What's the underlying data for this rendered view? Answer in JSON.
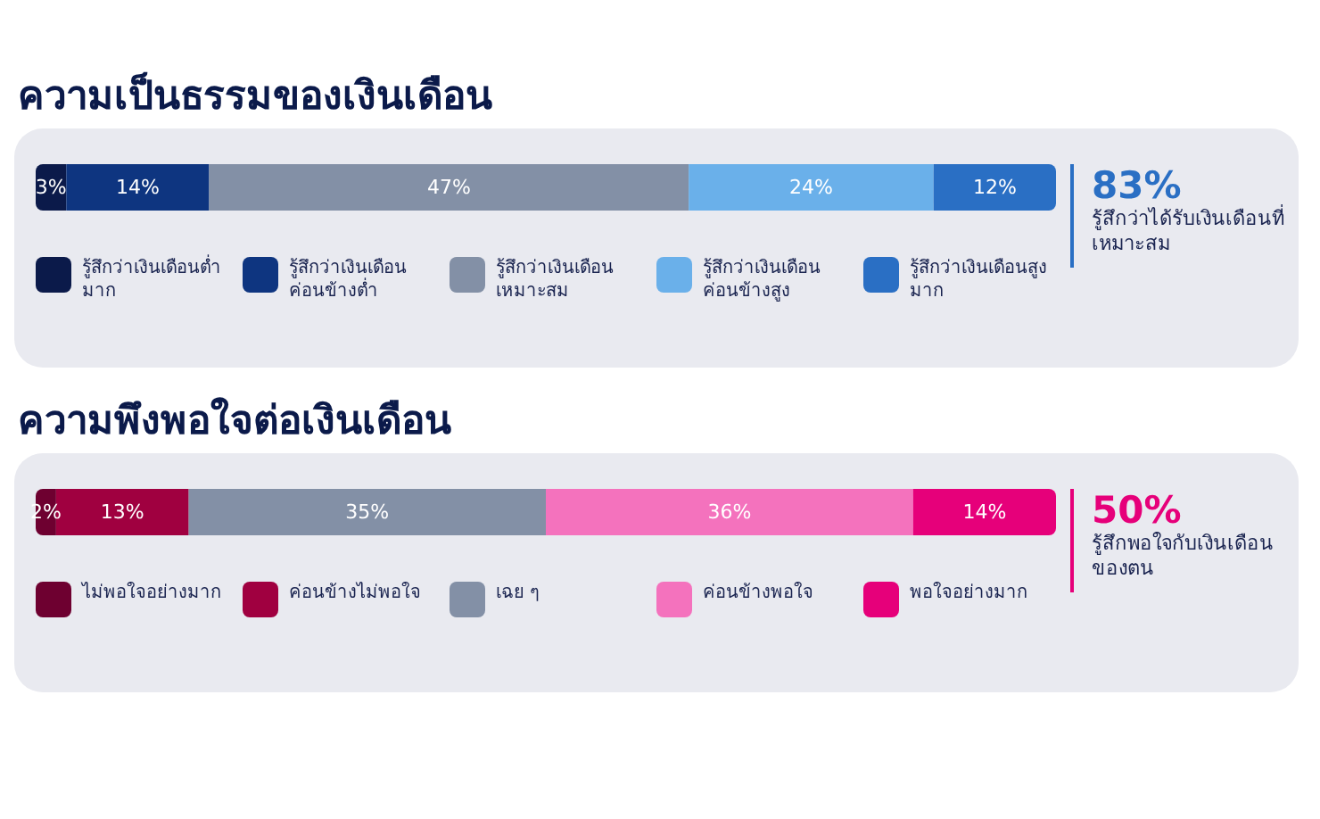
{
  "chart_data": [
    {
      "type": "bar",
      "orientation": "horizontal",
      "stacked": true,
      "title": "ความเป็นธรรมของเงินเดือน",
      "categories": [
        null
      ],
      "xlim": [
        0,
        100
      ],
      "tick_labels": false,
      "grid": false,
      "legend": "bottom",
      "series": [
        {
          "name": "รู้สึกว่าเงินเดือนต่ำมาก",
          "color": "#0b1a4a",
          "values": [
            3
          ],
          "value_labels": [
            "3%"
          ]
        },
        {
          "name": "รู้สึกว่าเงินเดือนค่อนข้างต่ำ",
          "color": "#0e3580",
          "values": [
            14
          ],
          "value_labels": [
            "14%"
          ]
        },
        {
          "name": "รู้สึกว่าเงินเดือนเหมาะสม",
          "color": "#8390a6",
          "values": [
            47
          ],
          "value_labels": [
            "47%"
          ]
        },
        {
          "name": "รู้สึกว่าเงินเดือนค่อนข้างสูง",
          "color": "#6ab0ea",
          "values": [
            24
          ],
          "value_labels": [
            "24%"
          ]
        },
        {
          "name": "รู้สึกว่าเงินเดือนสูงมาก",
          "color": "#2a6fc4",
          "values": [
            12
          ],
          "value_labels": [
            "12%"
          ]
        }
      ],
      "annotations": [
        "83%",
        "รู้สึกว่าได้รับเงินเดือนที่เหมาะสม"
      ]
    },
    {
      "type": "bar",
      "orientation": "horizontal",
      "stacked": true,
      "title": "ความพึงพอใจต่อเงินเดือน",
      "categories": [
        null
      ],
      "xlim": [
        0,
        100
      ],
      "tick_labels": false,
      "grid": false,
      "legend": "bottom",
      "series": [
        {
          "name": "ไม่พอใจอย่างมาก",
          "color": "#6e0030",
          "values": [
            2
          ],
          "value_labels": [
            "2%"
          ]
        },
        {
          "name": "ค่อนข้างไม่พอใจ",
          "color": "#a00040",
          "values": [
            13
          ],
          "value_labels": [
            "13%"
          ]
        },
        {
          "name": "เฉย ๆ",
          "color": "#8390a6",
          "values": [
            35
          ],
          "value_labels": [
            "35%"
          ]
        },
        {
          "name": "ค่อนข้างพอใจ",
          "color": "#f472bd",
          "values": [
            36
          ],
          "value_labels": [
            "36%"
          ]
        },
        {
          "name": "พอใจอย่างมาก",
          "color": "#e6007a",
          "values": [
            14
          ],
          "value_labels": [
            "14%"
          ]
        }
      ],
      "annotations": [
        "50%",
        "รู้สึกพอใจกับเงินเดือนของตน"
      ]
    }
  ]
}
